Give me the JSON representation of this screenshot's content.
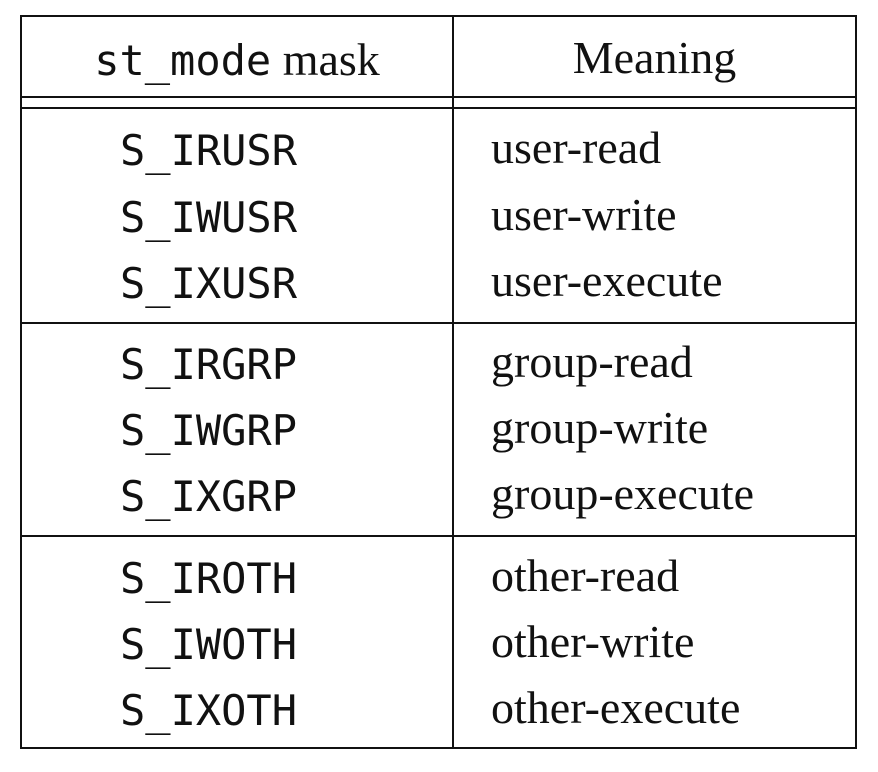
{
  "table": {
    "header": {
      "mask_code": "st_mode",
      "mask_word": " mask",
      "meaning": "Meaning"
    },
    "groups": [
      {
        "rows": [
          {
            "mask": "S_IRUSR",
            "meaning": "user-read"
          },
          {
            "mask": "S_IWUSR",
            "meaning": "user-write"
          },
          {
            "mask": "S_IXUSR",
            "meaning": "user-execute"
          }
        ]
      },
      {
        "rows": [
          {
            "mask": "S_IRGRP",
            "meaning": "group-read"
          },
          {
            "mask": "S_IWGRP",
            "meaning": "group-write"
          },
          {
            "mask": "S_IXGRP",
            "meaning": "group-execute"
          }
        ]
      },
      {
        "rows": [
          {
            "mask": "S_IROTH",
            "meaning": "other-read"
          },
          {
            "mask": "S_IWOTH",
            "meaning": "other-write"
          },
          {
            "mask": "S_IXOTH",
            "meaning": "other-execute"
          }
        ]
      }
    ]
  }
}
